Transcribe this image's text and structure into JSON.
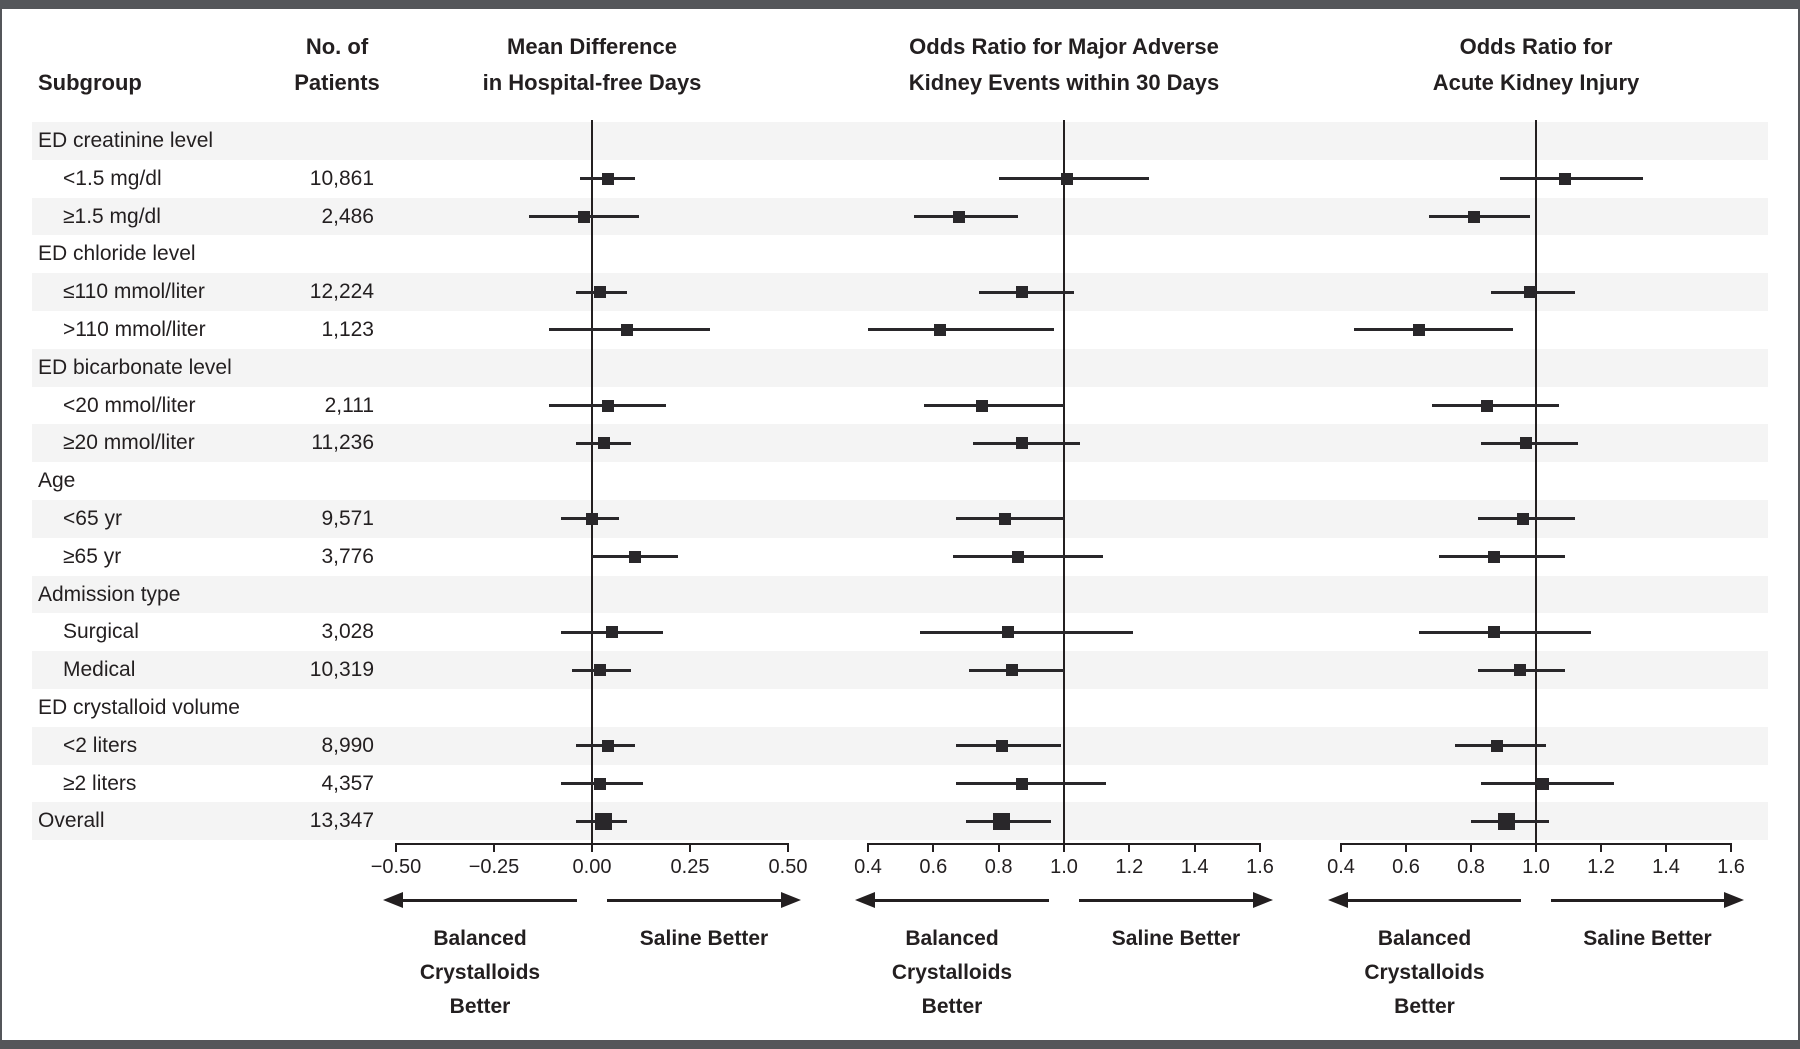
{
  "figure": {
    "columns": {
      "subgroup_header": "Subgroup",
      "patients_header_line1": "No. of",
      "patients_header_line2": "Patients"
    },
    "footer_labels": {
      "left_lines": [
        "Balanced",
        "Crystalloids",
        "Better"
      ],
      "right": "Saline Better"
    },
    "colors": {
      "ink": "#231f20",
      "marker": "#29272a",
      "stripe": "#f4f4f4",
      "frame": "#54565a",
      "background": "#ffffff"
    }
  },
  "chart_data": {
    "type": "forest",
    "panels": [
      {
        "key": "panel1",
        "title_line1": "Mean Difference",
        "title_line2": "in Hospital-free Days",
        "axis": {
          "min": -0.5,
          "max": 0.5,
          "center": 0.0,
          "ticks": [
            -0.5,
            -0.25,
            0.0,
            0.25,
            0.5
          ],
          "tick_labels": [
            "−0.50",
            "−0.25",
            "0.00",
            "0.25",
            "0.50"
          ]
        }
      },
      {
        "key": "panel2",
        "title_line1": "Odds Ratio for Major Adverse",
        "title_line2": "Kidney Events within 30 Days",
        "axis": {
          "min": 0.4,
          "max": 1.6,
          "center": 1.0,
          "ticks": [
            0.4,
            0.6,
            0.8,
            1.0,
            1.2,
            1.4,
            1.6
          ],
          "tick_labels": [
            "0.4",
            "0.6",
            "0.8",
            "1.0",
            "1.2",
            "1.4",
            "1.6"
          ]
        }
      },
      {
        "key": "panel3",
        "title_line1": "Odds Ratio for",
        "title_line2": "Acute Kidney Injury",
        "axis": {
          "min": 0.4,
          "max": 1.6,
          "center": 1.0,
          "ticks": [
            0.4,
            0.6,
            0.8,
            1.0,
            1.2,
            1.4,
            1.6
          ],
          "tick_labels": [
            "0.4",
            "0.6",
            "0.8",
            "1.0",
            "1.2",
            "1.4",
            "1.6"
          ]
        }
      }
    ],
    "rows": [
      {
        "label": "ED creatinine level",
        "header": true
      },
      {
        "label": "<1.5 mg/dl",
        "patients": "10,861",
        "panel1": {
          "est": 0.04,
          "lo": -0.03,
          "hi": 0.11
        },
        "panel2": {
          "est": 1.01,
          "lo": 0.8,
          "hi": 1.26
        },
        "panel3": {
          "est": 1.09,
          "lo": 0.89,
          "hi": 1.33
        }
      },
      {
        "label": "≥1.5 mg/dl",
        "patients": "2,486",
        "panel1": {
          "est": -0.02,
          "lo": -0.16,
          "hi": 0.12
        },
        "panel2": {
          "est": 0.68,
          "lo": 0.54,
          "hi": 0.86
        },
        "panel3": {
          "est": 0.81,
          "lo": 0.67,
          "hi": 0.98
        }
      },
      {
        "label": "ED chloride level",
        "header": true
      },
      {
        "label": "≤110 mmol/liter",
        "patients": "12,224",
        "panel1": {
          "est": 0.02,
          "lo": -0.04,
          "hi": 0.09
        },
        "panel2": {
          "est": 0.87,
          "lo": 0.74,
          "hi": 1.03
        },
        "panel3": {
          "est": 0.98,
          "lo": 0.86,
          "hi": 1.12
        }
      },
      {
        "label": ">110 mmol/liter",
        "patients": "1,123",
        "panel1": {
          "est": 0.09,
          "lo": -0.11,
          "hi": 0.3
        },
        "panel2": {
          "est": 0.62,
          "lo": 0.4,
          "hi": 0.97
        },
        "panel3": {
          "est": 0.64,
          "lo": 0.44,
          "hi": 0.93
        }
      },
      {
        "label": "ED bicarbonate level",
        "header": true
      },
      {
        "label": "<20 mmol/liter",
        "patients": "2,111",
        "panel1": {
          "est": 0.04,
          "lo": -0.11,
          "hi": 0.19
        },
        "panel2": {
          "est": 0.75,
          "lo": 0.57,
          "hi": 1.0
        },
        "panel3": {
          "est": 0.85,
          "lo": 0.68,
          "hi": 1.07
        }
      },
      {
        "label": "≥20 mmol/liter",
        "patients": "11,236",
        "panel1": {
          "est": 0.03,
          "lo": -0.04,
          "hi": 0.1
        },
        "panel2": {
          "est": 0.87,
          "lo": 0.72,
          "hi": 1.05
        },
        "panel3": {
          "est": 0.97,
          "lo": 0.83,
          "hi": 1.13
        }
      },
      {
        "label": "Age",
        "header": true
      },
      {
        "label": "<65 yr",
        "patients": "9,571",
        "panel1": {
          "est": 0.0,
          "lo": -0.08,
          "hi": 0.07
        },
        "panel2": {
          "est": 0.82,
          "lo": 0.67,
          "hi": 1.0
        },
        "panel3": {
          "est": 0.96,
          "lo": 0.82,
          "hi": 1.12
        }
      },
      {
        "label": "≥65 yr",
        "patients": "3,776",
        "panel1": {
          "est": 0.11,
          "lo": 0.0,
          "hi": 0.22
        },
        "panel2": {
          "est": 0.86,
          "lo": 0.66,
          "hi": 1.12
        },
        "panel3": {
          "est": 0.87,
          "lo": 0.7,
          "hi": 1.09
        }
      },
      {
        "label": "Admission type",
        "header": true
      },
      {
        "label": "Surgical",
        "patients": "3,028",
        "panel1": {
          "est": 0.05,
          "lo": -0.08,
          "hi": 0.18
        },
        "panel2": {
          "est": 0.83,
          "lo": 0.56,
          "hi": 1.21
        },
        "panel3": {
          "est": 0.87,
          "lo": 0.64,
          "hi": 1.17
        }
      },
      {
        "label": "Medical",
        "patients": "10,319",
        "panel1": {
          "est": 0.02,
          "lo": -0.05,
          "hi": 0.1
        },
        "panel2": {
          "est": 0.84,
          "lo": 0.71,
          "hi": 1.0
        },
        "panel3": {
          "est": 0.95,
          "lo": 0.82,
          "hi": 1.09
        }
      },
      {
        "label": "ED crystalloid volume",
        "header": true
      },
      {
        "label": "<2 liters",
        "patients": "8,990",
        "panel1": {
          "est": 0.04,
          "lo": -0.04,
          "hi": 0.11
        },
        "panel2": {
          "est": 0.81,
          "lo": 0.67,
          "hi": 0.99
        },
        "panel3": {
          "est": 0.88,
          "lo": 0.75,
          "hi": 1.03
        }
      },
      {
        "label": "≥2 liters",
        "patients": "4,357",
        "panel1": {
          "est": 0.02,
          "lo": -0.08,
          "hi": 0.13
        },
        "panel2": {
          "est": 0.87,
          "lo": 0.67,
          "hi": 1.13
        },
        "panel3": {
          "est": 1.02,
          "lo": 0.83,
          "hi": 1.24
        }
      },
      {
        "label": "Overall",
        "patients": "13,347",
        "overall": true,
        "panel1": {
          "est": 0.03,
          "lo": -0.04,
          "hi": 0.09
        },
        "panel2": {
          "est": 0.81,
          "lo": 0.7,
          "hi": 0.96
        },
        "panel3": {
          "est": 0.91,
          "lo": 0.8,
          "hi": 1.04
        }
      }
    ]
  }
}
